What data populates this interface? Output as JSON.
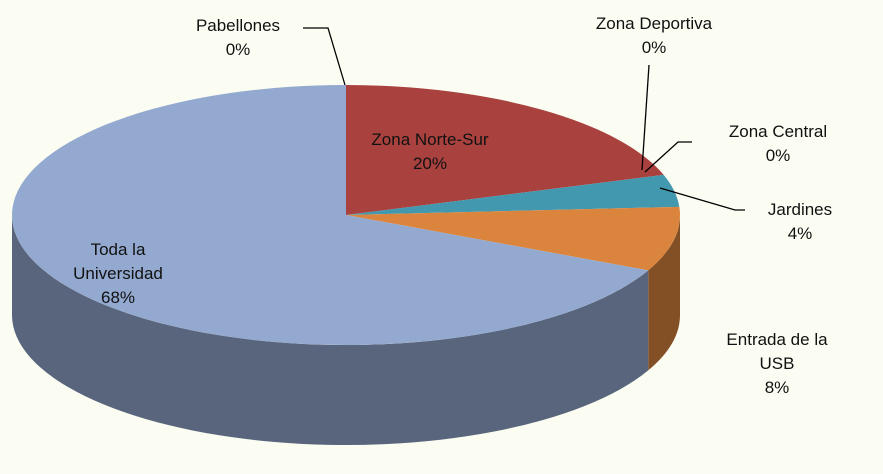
{
  "chart_data": {
    "type": "pie",
    "categories": [
      "Pabellones",
      "Zona Norte-Sur",
      "Zona Deportiva",
      "Zona Central",
      "Jardines",
      "Entrada de la USB",
      "Toda la Universidad"
    ],
    "values": [
      0,
      20,
      0,
      0,
      4,
      8,
      68
    ],
    "value_labels": [
      "0%",
      "20%",
      "0%",
      "0%",
      "4%",
      "8%",
      "68%"
    ],
    "colors": [
      "#4572a7",
      "#a9423f",
      "#89a54e",
      "#71588f",
      "#4198af",
      "#db843d",
      "#93a9cf"
    ]
  }
}
